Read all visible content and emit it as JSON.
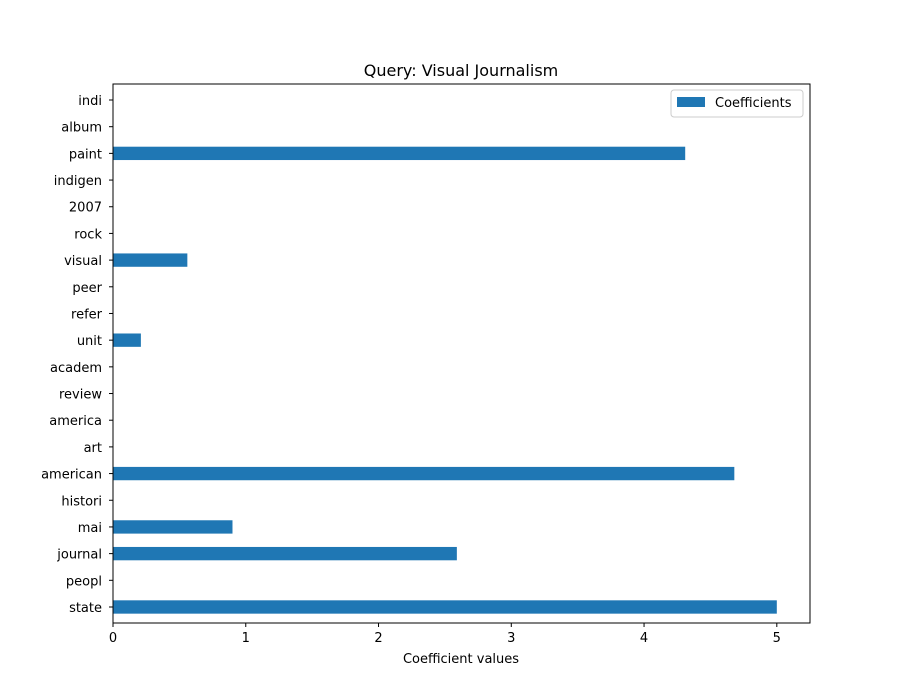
{
  "chart_data": {
    "type": "bar",
    "orientation": "horizontal",
    "title": "Query: Visual Journalism",
    "xlabel": "Coefficient values",
    "ylabel": "",
    "xlim": [
      0,
      5.25
    ],
    "xticks": [
      "0",
      "1",
      "2",
      "3",
      "4",
      "5"
    ],
    "categories": [
      "state",
      "peopl",
      "journal",
      "mai",
      "histori",
      "american",
      "art",
      "america",
      "review",
      "academ",
      "unit",
      "refer",
      "peer",
      "visual",
      "rock",
      "2007",
      "indigen",
      "paint",
      "album",
      "indi"
    ],
    "series": [
      {
        "name": "Coefficients",
        "color": "#1f77b4",
        "values": [
          5.0,
          0,
          2.59,
          0.9,
          0,
          4.68,
          0,
          0,
          0,
          0,
          0.21,
          0,
          0,
          0.56,
          0,
          0,
          0,
          4.31,
          0,
          0
        ]
      }
    ],
    "legend": {
      "position": "upper-right",
      "label": "Coefficients"
    },
    "grid": false
  }
}
